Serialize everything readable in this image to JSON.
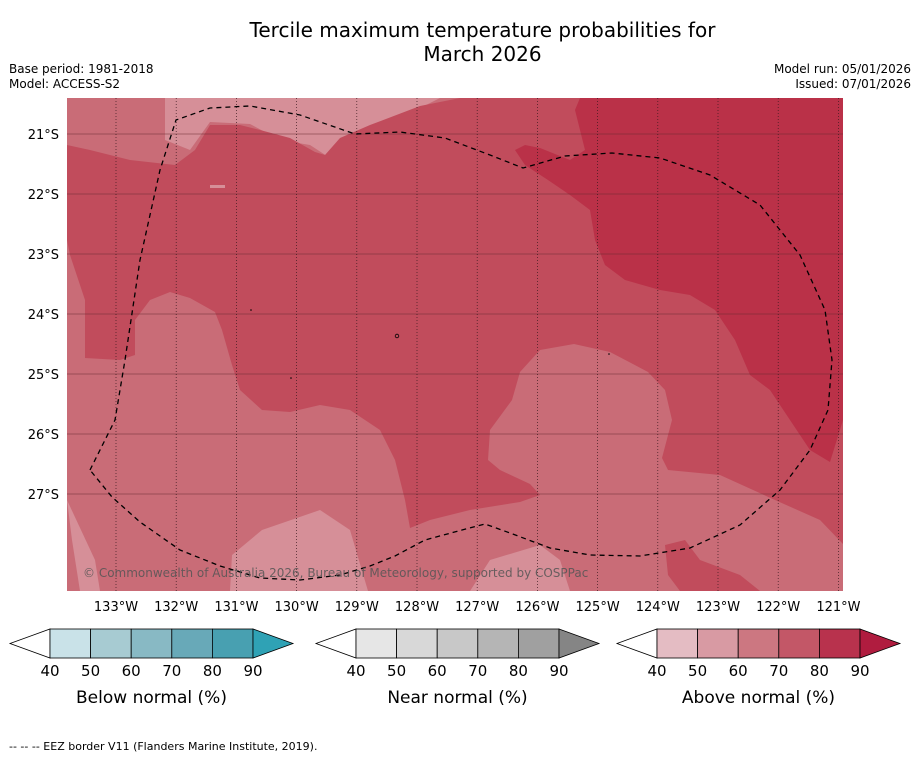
{
  "title_line1": "Tercile maximum temperature probabilities for",
  "title_line2": "March 2026",
  "meta": {
    "base_period": "Base period: 1981-2018",
    "model": "Model: ACCESS-S2",
    "model_run": "Model run: 05/01/2026",
    "issued": "Issued: 07/01/2026"
  },
  "copyright": "© Commonwealth of Australia 2026, Bureau of Meteorology, supported by COSPPac",
  "lat_ticks": [
    "21°S",
    "22°S",
    "23°S",
    "24°S",
    "25°S",
    "26°S",
    "27°S"
  ],
  "lon_ticks": [
    "133°W",
    "132°W",
    "131°W",
    "130°W",
    "129°W",
    "128°W",
    "127°W",
    "126°W",
    "125°W",
    "124°W",
    "123°W",
    "122°W",
    "121°W"
  ],
  "colorbars": [
    {
      "label": "Below normal (%)",
      "ticks": [
        "40",
        "50",
        "60",
        "70",
        "80",
        "90"
      ],
      "colors": [
        "#ffffff",
        "#c9e2e8",
        "#a7cbd2",
        "#88b9c4",
        "#68a9b8",
        "#48a0b1",
        "#2fa2b5"
      ]
    },
    {
      "label": "Near normal (%)",
      "ticks": [
        "40",
        "50",
        "60",
        "70",
        "80",
        "90"
      ],
      "colors": [
        "#ffffff",
        "#e6e6e6",
        "#d8d8d8",
        "#c8c8c8",
        "#b5b5b5",
        "#a0a0a0",
        "#858585"
      ]
    },
    {
      "label": "Above normal (%)",
      "ticks": [
        "40",
        "50",
        "60",
        "70",
        "80",
        "90"
      ],
      "colors": [
        "#ffffff",
        "#e4bcc3",
        "#d89aa3",
        "#cc7781",
        "#c35767",
        "#b8324d",
        "#b01c3f"
      ]
    }
  ],
  "legend_text": "-- -- -- EEZ border V11 (Flanders Marine Institute, 2019).",
  "map_colors": {
    "above_50_60": "#d68f98",
    "above_60_70": "#c96c77",
    "above_70_80": "#c14c5c",
    "above_80_90": "#ba3148"
  }
}
